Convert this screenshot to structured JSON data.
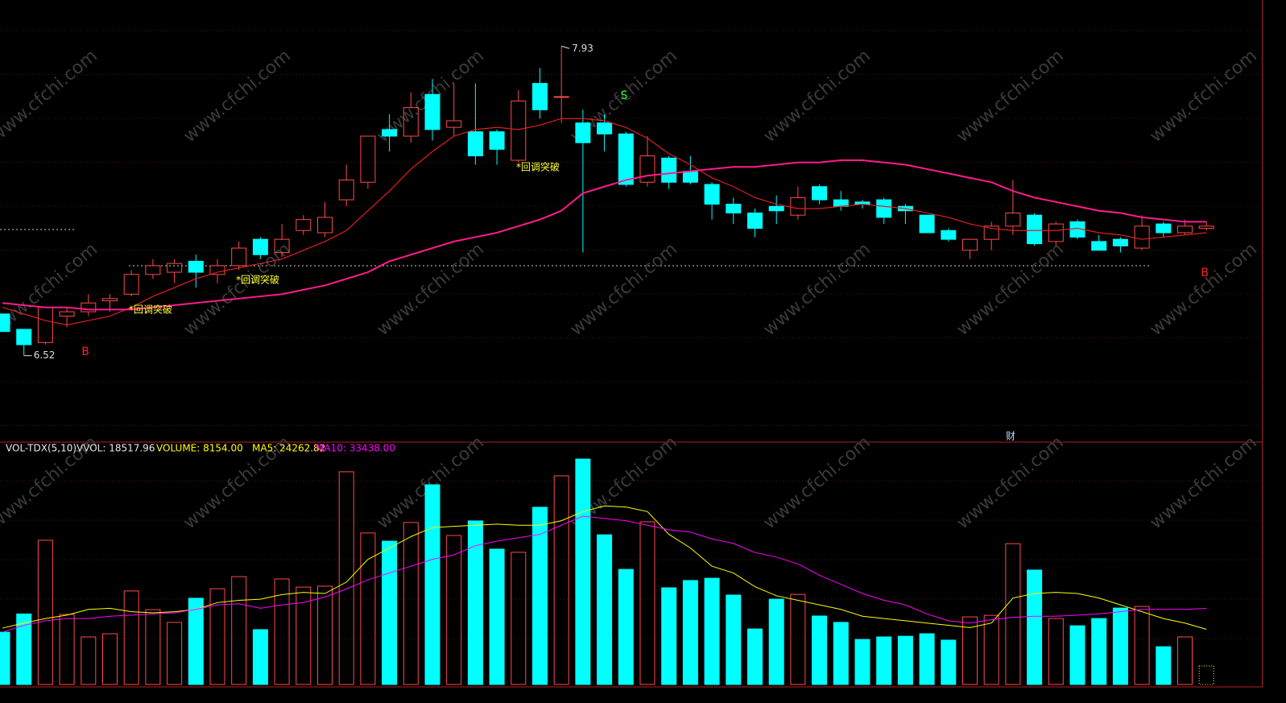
{
  "chart_data": [
    {
      "type": "candlestick",
      "open": [
        6.71,
        6.64,
        6.58,
        6.7,
        6.72,
        6.77,
        6.8,
        6.89,
        6.9,
        6.95,
        6.89,
        6.93,
        7.05,
        6.99,
        7.09,
        7.08,
        7.23,
        7.31,
        7.55,
        7.52,
        7.71,
        7.56,
        7.54,
        7.54,
        7.41,
        7.76,
        7.7,
        7.58,
        7.58,
        7.53,
        7.31,
        7.42,
        7.36,
        7.3,
        7.21,
        7.17,
        7.2,
        7.16,
        7.29,
        7.23,
        7.22,
        7.23,
        7.2,
        7.16,
        7.09,
        7.0,
        7.05,
        7.11,
        7.16,
        7.04,
        7.13,
        7.04,
        7.05,
        7.01,
        7.12,
        7.08,
        7.1
      ],
      "high": [
        6.71,
        6.64,
        6.74,
        6.74,
        6.8,
        6.8,
        6.91,
        6.96,
        6.96,
        6.98,
        6.96,
        7.04,
        7.06,
        7.12,
        7.16,
        7.22,
        7.39,
        7.52,
        7.62,
        7.72,
        7.78,
        7.76,
        7.76,
        7.55,
        7.73,
        7.83,
        7.93,
        7.64,
        7.62,
        7.54,
        7.52,
        7.43,
        7.43,
        7.31,
        7.24,
        7.19,
        7.25,
        7.29,
        7.3,
        7.27,
        7.23,
        7.24,
        7.21,
        7.16,
        7.1,
        7.05,
        7.13,
        7.32,
        7.17,
        7.13,
        7.14,
        7.07,
        7.06,
        7.16,
        7.13,
        7.14,
        7.13
      ],
      "low": [
        6.63,
        6.52,
        6.57,
        6.65,
        6.7,
        6.72,
        6.79,
        6.87,
        6.85,
        6.83,
        6.85,
        6.91,
        6.96,
        6.97,
        7.07,
        7.06,
        7.2,
        7.28,
        7.45,
        7.49,
        7.5,
        7.52,
        7.39,
        7.39,
        7.4,
        7.6,
        7.58,
        6.99,
        7.45,
        7.29,
        7.29,
        7.28,
        7.3,
        7.14,
        7.12,
        7.06,
        7.12,
        7.14,
        7.21,
        7.18,
        7.19,
        7.12,
        7.12,
        7.08,
        7.04,
        6.96,
        7.0,
        7.07,
        7.02,
        7.02,
        7.05,
        7.0,
        6.99,
        7.0,
        7.06,
        7.07,
        7.09
      ],
      "close": [
        6.63,
        6.57,
        6.74,
        6.72,
        6.76,
        6.78,
        6.89,
        6.93,
        6.94,
        6.9,
        6.93,
        7.01,
        6.98,
        7.05,
        7.14,
        7.15,
        7.32,
        7.52,
        7.52,
        7.65,
        7.55,
        7.59,
        7.43,
        7.46,
        7.68,
        7.64,
        7.7,
        7.49,
        7.53,
        7.3,
        7.43,
        7.31,
        7.31,
        7.21,
        7.17,
        7.1,
        7.18,
        7.24,
        7.23,
        7.2,
        7.21,
        7.15,
        7.18,
        7.08,
        7.05,
        7.05,
        7.11,
        7.17,
        7.03,
        7.12,
        7.06,
        7.0,
        7.02,
        7.11,
        7.08,
        7.11,
        7.11
      ],
      "ylim": [
        6.13,
        8.14
      ],
      "up_color": "#ff4a4a",
      "down_color": "#00ffff",
      "lines": [
        {
          "color": "#e02020",
          "values": [
            6.74,
            6.71,
            6.68,
            6.66,
            6.68,
            6.7,
            6.74,
            6.79,
            6.83,
            6.87,
            6.9,
            6.92,
            6.94,
            6.96,
            7.0,
            7.04,
            7.09,
            7.18,
            7.27,
            7.37,
            7.45,
            7.52,
            7.55,
            7.56,
            7.55,
            7.57,
            7.6,
            7.6,
            7.59,
            7.56,
            7.51,
            7.44,
            7.39,
            7.33,
            7.29,
            7.24,
            7.21,
            7.19,
            7.19,
            7.2,
            7.21,
            7.2,
            7.19,
            7.17,
            7.15,
            7.12,
            7.1,
            7.09,
            7.09,
            7.09,
            7.1,
            7.08,
            7.07,
            7.05,
            7.06,
            7.07,
            7.08
          ]
        },
        {
          "color": "#ff1a8c",
          "values": [
            6.76,
            6.75,
            6.74,
            6.74,
            6.73,
            6.73,
            6.73,
            6.74,
            6.75,
            6.76,
            6.77,
            6.78,
            6.79,
            6.8,
            6.82,
            6.84,
            6.87,
            6.9,
            6.95,
            6.98,
            7.01,
            7.04,
            7.06,
            7.08,
            7.11,
            7.14,
            7.18,
            7.26,
            7.29,
            7.32,
            7.34,
            7.35,
            7.36,
            7.37,
            7.38,
            7.38,
            7.39,
            7.4,
            7.4,
            7.41,
            7.41,
            7.4,
            7.39,
            7.37,
            7.35,
            7.33,
            7.31,
            7.27,
            7.24,
            7.22,
            7.2,
            7.18,
            7.17,
            7.15,
            7.14,
            7.13,
            7.13
          ]
        }
      ],
      "annotations": [
        "7.93",
        "6.52",
        "B",
        "B",
        "S",
        "*回调突破",
        "*回调突破",
        "*回调突破",
        "财"
      ],
      "watermark": "www.cfchi.com"
    },
    {
      "type": "bar",
      "indicator": "VOL-TDX(5,10)",
      "legend": [
        "VVOL: 18517.96",
        "VOLUME: 8154.00",
        "MA5: 24262.82",
        "MA10: 33438.00"
      ],
      "legend_colors": [
        "#e8e8e8",
        "#ffff00",
        "#ffff00",
        "#ff00ff"
      ],
      "values": [
        23000,
        31000,
        63400,
        30800,
        20900,
        22300,
        41100,
        32900,
        27300,
        37900,
        42100,
        47400,
        24100,
        46400,
        42800,
        43200,
        93500,
        66600,
        63000,
        71200,
        87800,
        65500,
        71900,
        59500,
        58100,
        77900,
        91700,
        99100,
        65800,
        50600,
        71500,
        42500,
        45700,
        46700,
        39300,
        24400,
        37500,
        39600,
        30100,
        27300,
        19800,
        20900,
        21200,
        22300,
        19500,
        29700,
        30400,
        61900,
        50300,
        29000,
        25800,
        29000,
        33600,
        34300,
        16600,
        20900,
        8154
      ],
      "ylim": [
        0,
        106200
      ],
      "ma": [
        {
          "color": "#ffff00",
          "values": [
            24800,
            27000,
            29000,
            30500,
            33000,
            33500,
            32000,
            31500,
            32000,
            33000,
            36000,
            37000,
            37500,
            39500,
            40500,
            40000,
            45000,
            55000,
            60000,
            65000,
            69000,
            69500,
            70000,
            70500,
            70000,
            70000,
            72000,
            76000,
            78500,
            78000,
            76000,
            66000,
            60000,
            52000,
            49000,
            43000,
            39000,
            37000,
            35000,
            33000,
            30000,
            29000,
            28000,
            27000,
            26000,
            25000,
            27000,
            38000,
            40000,
            40500,
            40000,
            38000,
            35000,
            32000,
            29000,
            27000,
            24262.82
          ]
        },
        {
          "color": "#ff00ff",
          "values": [
            23000,
            26000,
            28000,
            29000,
            29000,
            30000,
            30500,
            31000,
            31500,
            33000,
            35000,
            35500,
            33500,
            35000,
            36000,
            38500,
            42000,
            46000,
            49000,
            52000,
            55000,
            57000,
            61000,
            63000,
            64500,
            66000,
            70000,
            74000,
            73000,
            72000,
            70000,
            68000,
            67000,
            64000,
            62000,
            58000,
            56000,
            53000,
            48000,
            44000,
            40000,
            37000,
            35000,
            31000,
            28000,
            27000,
            28500,
            29500,
            30000,
            30000,
            30500,
            31000,
            32000,
            33000,
            33000,
            33000,
            33438
          ]
        }
      ]
    }
  ]
}
